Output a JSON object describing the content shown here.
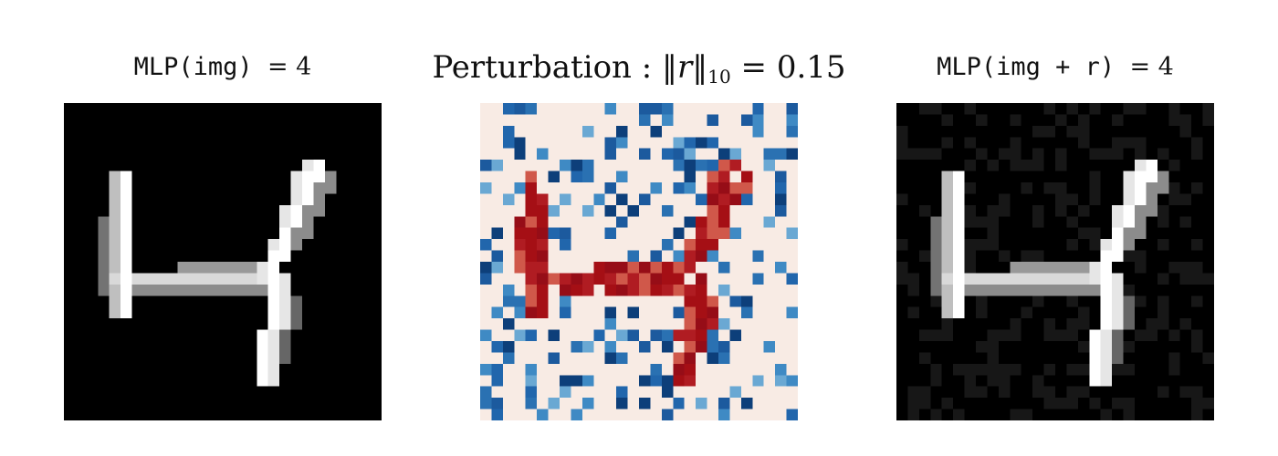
{
  "titles": {
    "left": {
      "prefix": "MLP(img)",
      "eq": "= 4"
    },
    "mid": {
      "text": "Perturbation :",
      "norm_var": "r",
      "norm_sub": "10",
      "eq": "= 0.15"
    },
    "right": {
      "prefix": "MLP(img + r)",
      "eq": "= 4"
    }
  },
  "colors": {
    "background": "#000000",
    "perturbation_background": "#f8ebe4",
    "perturbation_negative": "#2166ac",
    "perturbation_positive": "#a50f15"
  },
  "image_grid": {
    "size": 28,
    "description_free_strokes": [
      [
        [
          4,
          7
        ],
        [
          5,
          19
        ]
      ],
      [
        [
          5,
          7
        ],
        [
          6,
          19
        ]
      ],
      [
        [
          4,
          12
        ],
        [
          18,
          12
        ]
      ],
      [
        [
          5,
          13
        ],
        [
          18,
          13
        ]
      ],
      [
        [
          16,
          12
        ],
        [
          22,
          11
        ]
      ],
      [
        [
          17,
          11
        ],
        [
          23,
          11
        ]
      ],
      [
        [
          20,
          10
        ],
        [
          19,
          23
        ]
      ],
      [
        [
          21,
          9
        ],
        [
          20,
          22
        ]
      ],
      [
        [
          22,
          7
        ],
        [
          22,
          14
        ]
      ],
      [
        [
          23,
          5
        ],
        [
          21,
          12
        ]
      ]
    ]
  }
}
